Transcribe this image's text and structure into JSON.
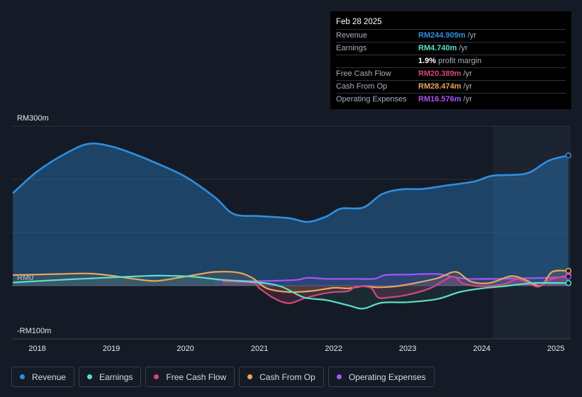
{
  "tooltip": {
    "date": "Feb 28 2025",
    "rows": [
      {
        "label": "Revenue",
        "value": "RM244.909m",
        "unit": "/yr",
        "color": "#2f8fe0"
      },
      {
        "label": "Earnings",
        "value": "RM4.740m",
        "unit": "/yr",
        "color": "#5ce0c8"
      },
      {
        "label": "",
        "value": "1.9%",
        "unit": "profit margin",
        "color": "#ffffff"
      },
      {
        "label": "Free Cash Flow",
        "value": "RM20.389m",
        "unit": "/yr",
        "color": "#d4467e"
      },
      {
        "label": "Cash From Op",
        "value": "RM28.474m",
        "unit": "/yr",
        "color": "#e8a75a"
      },
      {
        "label": "Operating Expenses",
        "value": "RM16.576m",
        "unit": "/yr",
        "color": "#a855f7"
      }
    ]
  },
  "legend": [
    {
      "label": "Revenue",
      "color": "#2f8fe0"
    },
    {
      "label": "Earnings",
      "color": "#5ce0c8"
    },
    {
      "label": "Free Cash Flow",
      "color": "#d4467e"
    },
    {
      "label": "Cash From Op",
      "color": "#e8a75a"
    },
    {
      "label": "Operating Expenses",
      "color": "#a855f7"
    }
  ],
  "chart_data": {
    "type": "line",
    "title": "",
    "xlabel": "",
    "ylabel": "",
    "ylim": [
      -100,
      300
    ],
    "xlim": [
      2017.65,
      2025.2
    ],
    "y_tick_labels": [
      {
        "value": 300,
        "label": "RM300m"
      },
      {
        "value": 0,
        "label": "RM0"
      },
      {
        "value": -100,
        "label": "-RM100m"
      }
    ],
    "x_tick_labels": [
      {
        "value": 2018,
        "label": "2018"
      },
      {
        "value": 2019,
        "label": "2019"
      },
      {
        "value": 2020,
        "label": "2020"
      },
      {
        "value": 2021,
        "label": "2021"
      },
      {
        "value": 2022,
        "label": "2022"
      },
      {
        "value": 2023,
        "label": "2023"
      },
      {
        "value": 2024,
        "label": "2024"
      },
      {
        "value": 2025,
        "label": "2025"
      }
    ],
    "forecast_start": 2024.15,
    "series": [
      {
        "name": "Revenue",
        "color": "#2f8fe0",
        "fill": true,
        "points": [
          [
            2017.67,
            174
          ],
          [
            2018.0,
            215
          ],
          [
            2018.4,
            250
          ],
          [
            2018.7,
            267
          ],
          [
            2019.0,
            262
          ],
          [
            2019.3,
            248
          ],
          [
            2019.6,
            231
          ],
          [
            2020.0,
            205
          ],
          [
            2020.4,
            166
          ],
          [
            2020.65,
            135
          ],
          [
            2021.0,
            131
          ],
          [
            2021.4,
            127
          ],
          [
            2021.65,
            120
          ],
          [
            2021.9,
            130
          ],
          [
            2022.1,
            145
          ],
          [
            2022.4,
            147
          ],
          [
            2022.65,
            172
          ],
          [
            2022.9,
            181
          ],
          [
            2023.2,
            182
          ],
          [
            2023.5,
            188
          ],
          [
            2023.9,
            196
          ],
          [
            2024.15,
            207
          ],
          [
            2024.6,
            211
          ],
          [
            2024.9,
            235
          ],
          [
            2025.17,
            245
          ]
        ]
      },
      {
        "name": "Earnings",
        "color": "#5ce0c8",
        "fill": false,
        "points": [
          [
            2017.67,
            6
          ],
          [
            2018.3,
            11
          ],
          [
            2018.9,
            15
          ],
          [
            2019.4,
            18
          ],
          [
            2019.7,
            19
          ],
          [
            2020.1,
            17
          ],
          [
            2020.5,
            11
          ],
          [
            2021.0,
            6
          ],
          [
            2021.3,
            -2
          ],
          [
            2021.6,
            -22
          ],
          [
            2021.9,
            -27
          ],
          [
            2022.2,
            -37
          ],
          [
            2022.4,
            -43
          ],
          [
            2022.65,
            -32
          ],
          [
            2023.0,
            -31
          ],
          [
            2023.4,
            -25
          ],
          [
            2023.7,
            -12
          ],
          [
            2024.0,
            -5
          ],
          [
            2024.3,
            -1
          ],
          [
            2024.7,
            5
          ],
          [
            2025.17,
            5
          ]
        ]
      },
      {
        "name": "Free Cash Flow",
        "color": "#d4467e",
        "fill": false,
        "points": [
          [
            2020.5,
            8
          ],
          [
            2020.9,
            6
          ],
          [
            2021.0,
            -5
          ],
          [
            2021.2,
            -24
          ],
          [
            2021.4,
            -33
          ],
          [
            2021.6,
            -24
          ],
          [
            2021.85,
            -15
          ],
          [
            2022.0,
            -12
          ],
          [
            2022.2,
            -10
          ],
          [
            2022.3,
            -2
          ],
          [
            2022.5,
            -4
          ],
          [
            2022.6,
            -22
          ],
          [
            2022.75,
            -22
          ],
          [
            2023.0,
            -17
          ],
          [
            2023.3,
            -5
          ],
          [
            2023.6,
            17
          ],
          [
            2023.75,
            4
          ],
          [
            2024.0,
            -1
          ],
          [
            2024.3,
            3
          ],
          [
            2024.5,
            12
          ],
          [
            2024.75,
            -2
          ],
          [
            2024.9,
            10
          ],
          [
            2025.17,
            20
          ]
        ]
      },
      {
        "name": "Cash From Op",
        "color": "#e8a75a",
        "fill": false,
        "points": [
          [
            2017.67,
            20
          ],
          [
            2018.3,
            22
          ],
          [
            2018.7,
            23
          ],
          [
            2019.0,
            19
          ],
          [
            2019.3,
            13
          ],
          [
            2019.6,
            9
          ],
          [
            2019.9,
            15
          ],
          [
            2020.2,
            22
          ],
          [
            2020.4,
            26
          ],
          [
            2020.7,
            25
          ],
          [
            2020.9,
            15
          ],
          [
            2021.1,
            -5
          ],
          [
            2021.4,
            -12
          ],
          [
            2021.7,
            -10
          ],
          [
            2022.0,
            -4
          ],
          [
            2022.2,
            -5
          ],
          [
            2022.4,
            -1
          ],
          [
            2022.6,
            -3
          ],
          [
            2022.85,
            -1
          ],
          [
            2023.1,
            5
          ],
          [
            2023.4,
            14
          ],
          [
            2023.65,
            26
          ],
          [
            2023.85,
            8
          ],
          [
            2024.1,
            5
          ],
          [
            2024.4,
            18
          ],
          [
            2024.6,
            10
          ],
          [
            2024.8,
            0
          ],
          [
            2024.95,
            26
          ],
          [
            2025.17,
            28
          ]
        ]
      },
      {
        "name": "Operating Expenses",
        "color": "#a855f7",
        "fill": false,
        "points": [
          [
            2020.4,
            12
          ],
          [
            2020.8,
            9
          ],
          [
            2021.1,
            9
          ],
          [
            2021.5,
            11
          ],
          [
            2021.65,
            15
          ],
          [
            2021.9,
            13
          ],
          [
            2022.3,
            13
          ],
          [
            2022.55,
            13
          ],
          [
            2022.7,
            20
          ],
          [
            2023.0,
            21
          ],
          [
            2023.4,
            22
          ],
          [
            2023.6,
            17
          ],
          [
            2023.8,
            13
          ],
          [
            2024.2,
            13
          ],
          [
            2024.6,
            14
          ],
          [
            2024.9,
            15
          ],
          [
            2025.17,
            17
          ]
        ]
      }
    ]
  }
}
